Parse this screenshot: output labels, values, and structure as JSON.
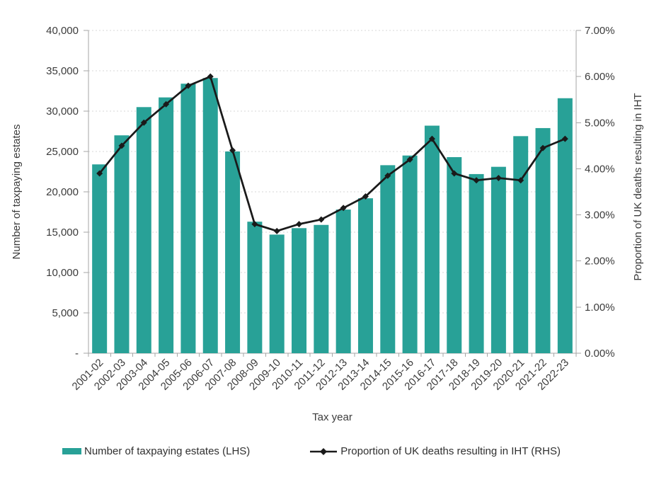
{
  "page": {
    "background": "#ffffff"
  },
  "chart_data": {
    "type": "combo",
    "title": "",
    "categories": [
      "2001-02",
      "2002-03",
      "2003-04",
      "2004-05",
      "2005-06",
      "2006-07",
      "2007-08",
      "2008-09",
      "2009-10",
      "2010-11",
      "2011-12",
      "2012-13",
      "2013-14",
      "2014-15",
      "2015-16",
      "2016-17",
      "2017-18",
      "2018-19",
      "2019-20",
      "2020-21",
      "2021-22",
      "2022-23"
    ],
    "series": [
      {
        "name": "Number of taxpaying estates (LHS)",
        "type": "bar",
        "axis": "left",
        "color": "#28A197",
        "values": [
          23400,
          27000,
          30500,
          31700,
          33400,
          34100,
          25000,
          16300,
          14700,
          15500,
          15900,
          17800,
          19200,
          23300,
          24500,
          28200,
          24300,
          22200,
          23100,
          26900,
          27900,
          31600
        ]
      },
      {
        "name": "Proportion of UK deaths resulting in IHT (RHS)",
        "type": "line",
        "axis": "right",
        "color": "#1a1a1a",
        "marker": "diamond",
        "values": [
          3.9,
          4.5,
          5.0,
          5.4,
          5.8,
          6.0,
          4.4,
          2.8,
          2.65,
          2.8,
          2.9,
          3.15,
          3.4,
          3.85,
          4.2,
          4.65,
          3.9,
          3.75,
          3.8,
          3.75,
          4.45,
          4.65
        ]
      }
    ],
    "x_axis": {
      "label": "Tax year",
      "tick_rotation_deg": -45
    },
    "left_axis": {
      "label": "Number of taxpaying estates",
      "min": 0,
      "max": 40000,
      "tick_step": 5000,
      "tick_labels": [
        "-",
        "5,000",
        "10,000",
        "15,000",
        "20,000",
        "25,000",
        "30,000",
        "35,000",
        "40,000"
      ]
    },
    "right_axis": {
      "label": "Proportion of UK deaths resulting in IHT",
      "min": 0,
      "max": 7,
      "tick_step": 1,
      "tick_labels": [
        "0.00%",
        "1.00%",
        "2.00%",
        "3.00%",
        "4.00%",
        "5.00%",
        "6.00%",
        "7.00%"
      ]
    },
    "grid": {
      "horizontal": true,
      "style": "dotted",
      "color": "#d7d7d7"
    },
    "axis_line_color": "#a6a6a6",
    "text_color": "#3b3b3b",
    "legend_position": "bottom"
  }
}
